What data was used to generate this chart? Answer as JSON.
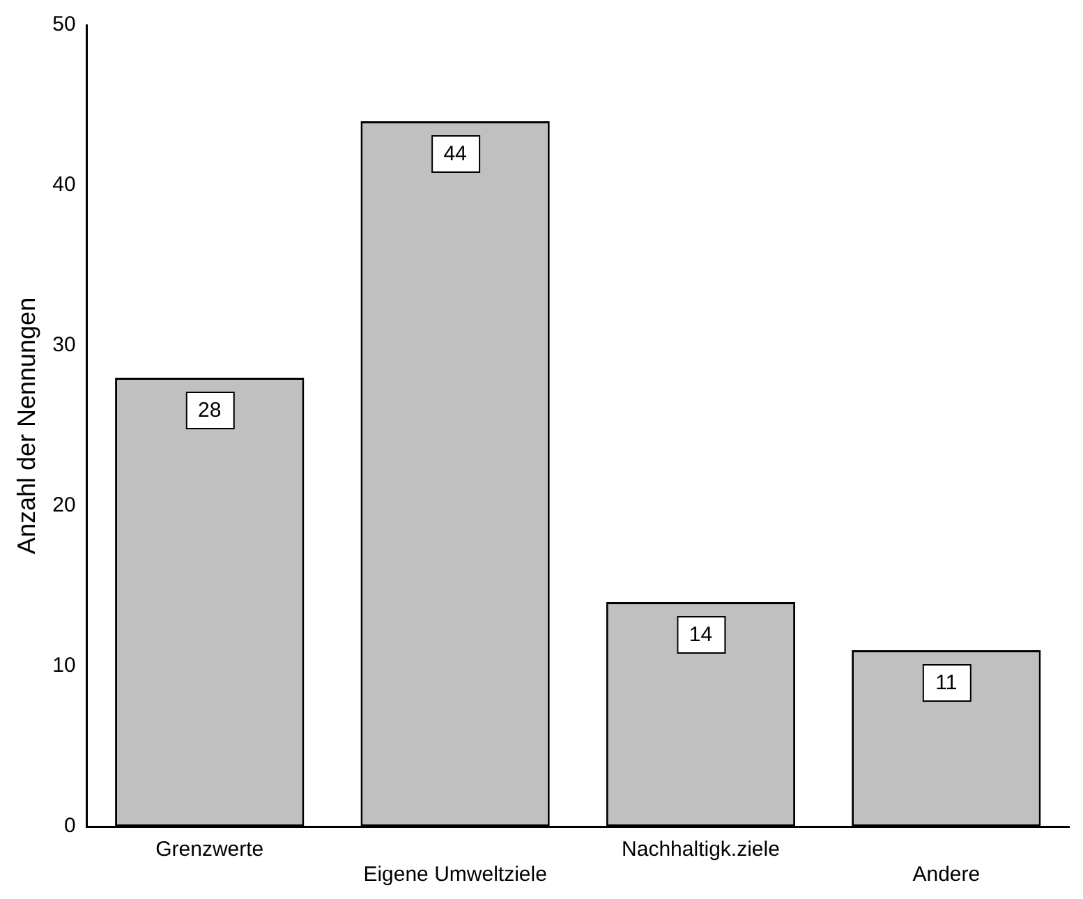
{
  "chart_data": {
    "type": "bar",
    "ylabel": "Anzahl der Nennungen",
    "categories": [
      "Grenzwerte",
      "Eigene Umweltziele",
      "Nachhaltigk.ziele",
      "Andere"
    ],
    "values": [
      28,
      44,
      14,
      11
    ],
    "color": "#c0c0c0",
    "ylim": [
      0,
      50
    ],
    "yticks": [
      0,
      10,
      20,
      30,
      40,
      50
    ],
    "grid": false,
    "data_labels": true
  }
}
